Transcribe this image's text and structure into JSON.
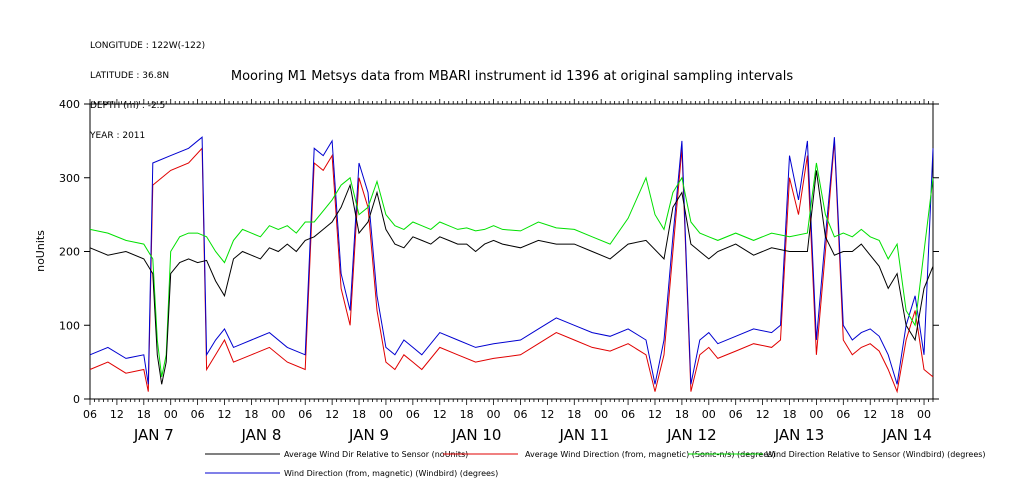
{
  "header": {
    "meta_lines": [
      "LONGITUDE : 122W(-122)",
      "LATITUDE : 36.8N",
      "DEPTH (m) : -2.5",
      "YEAR : 2011"
    ],
    "title": "Mooring M1 Metsys data from MBARI instrument id 1396 at original sampling intervals"
  },
  "colors": {
    "series1": "#000000",
    "series2": "#e00000",
    "series3": "#00e000",
    "series4": "#0000d0",
    "axis": "#000000",
    "background": "#ffffff"
  },
  "chart_data": {
    "type": "line",
    "title": "Mooring M1 Metsys data from MBARI instrument id 1396 at original sampling intervals",
    "ylabel": "noUnits",
    "xlabel": "",
    "ylim": [
      0,
      400
    ],
    "y_ticks": [
      0,
      100,
      200,
      300,
      400
    ],
    "xlim_hours": [
      0,
      188
    ],
    "x_tick_labels": [
      "06",
      "12",
      "18",
      "00",
      "06",
      "12",
      "18",
      "00",
      "06",
      "12",
      "18",
      "00",
      "06",
      "12",
      "18",
      "00",
      "06",
      "12",
      "18",
      "00",
      "06",
      "12",
      "18",
      "00",
      "06",
      "12",
      "18",
      "00",
      "06",
      "12",
      "18",
      "00"
    ],
    "day_labels": [
      "JAN  7",
      "JAN  8",
      "JAN  9",
      "JAN 10",
      "JAN 11",
      "JAN 12",
      "JAN 13",
      "JAN 14"
    ],
    "grid": false,
    "legend_position": "bottom",
    "series": [
      {
        "name": "Average Wind Dir Relative to Sensor (noUnits)",
        "x": [
          0,
          4,
          8,
          12,
          14,
          15,
          16,
          17,
          18,
          20,
          22,
          24,
          26,
          28,
          30,
          32,
          34,
          36,
          38,
          40,
          42,
          44,
          46,
          48,
          50,
          52,
          54,
          56,
          58,
          60,
          62,
          64,
          66,
          68,
          70,
          72,
          74,
          76,
          78,
          80,
          82,
          84,
          86,
          88,
          90,
          92,
          96,
          100,
          104,
          108,
          112,
          116,
          120,
          124,
          128,
          130,
          132,
          134,
          136,
          138,
          140,
          144,
          148,
          152,
          156,
          160,
          162,
          164,
          166,
          168,
          170,
          172,
          174,
          176,
          178,
          180,
          182,
          184,
          186,
          188
        ],
        "y": [
          205,
          195,
          200,
          190,
          170,
          60,
          20,
          50,
          170,
          185,
          190,
          185,
          188,
          160,
          140,
          190,
          200,
          195,
          190,
          205,
          200,
          210,
          200,
          215,
          220,
          230,
          240,
          260,
          290,
          225,
          240,
          280,
          230,
          210,
          205,
          220,
          215,
          210,
          220,
          215,
          210,
          210,
          200,
          210,
          215,
          210,
          205,
          215,
          210,
          210,
          200,
          190,
          210,
          215,
          190,
          260,
          280,
          210,
          200,
          190,
          200,
          210,
          195,
          205,
          200,
          200,
          310,
          220,
          195,
          200,
          200,
          210,
          195,
          180,
          150,
          170,
          100,
          80,
          150,
          180
        ]
      },
      {
        "name": "Average Wind Direction (from, magnetic) (Sonic-n/s) (degrees)",
        "x": [
          0,
          4,
          8,
          12,
          13,
          14,
          18,
          22,
          25,
          26,
          28,
          30,
          32,
          34,
          36,
          40,
          44,
          48,
          50,
          52,
          54,
          56,
          58,
          60,
          62,
          64,
          66,
          68,
          70,
          72,
          74,
          78,
          82,
          86,
          90,
          96,
          100,
          104,
          108,
          112,
          116,
          120,
          124,
          126,
          128,
          130,
          132,
          134,
          136,
          138,
          140,
          144,
          148,
          152,
          154,
          156,
          158,
          160,
          162,
          164,
          166,
          168,
          170,
          172,
          174,
          176,
          178,
          180,
          182,
          184,
          186,
          188
        ],
        "y": [
          40,
          50,
          35,
          40,
          10,
          290,
          310,
          320,
          340,
          40,
          60,
          80,
          50,
          55,
          60,
          70,
          50,
          40,
          320,
          310,
          330,
          150,
          100,
          300,
          260,
          120,
          50,
          40,
          60,
          50,
          40,
          70,
          60,
          50,
          55,
          60,
          75,
          90,
          80,
          70,
          65,
          75,
          60,
          10,
          60,
          200,
          340,
          10,
          60,
          70,
          55,
          65,
          75,
          70,
          80,
          300,
          250,
          330,
          60,
          200,
          350,
          80,
          60,
          70,
          75,
          65,
          40,
          10,
          80,
          120,
          40,
          30
        ]
      },
      {
        "name": "Wind Direction Relative to Sensor (Windbird) (degrees)",
        "x": [
          0,
          4,
          8,
          12,
          14,
          15,
          16,
          17,
          18,
          20,
          22,
          24,
          26,
          28,
          30,
          32,
          34,
          36,
          38,
          40,
          42,
          44,
          46,
          48,
          50,
          52,
          54,
          56,
          58,
          60,
          62,
          64,
          66,
          68,
          70,
          72,
          74,
          76,
          78,
          80,
          82,
          84,
          86,
          88,
          90,
          92,
          96,
          100,
          104,
          108,
          112,
          116,
          120,
          124,
          126,
          128,
          130,
          132,
          134,
          136,
          138,
          140,
          144,
          148,
          152,
          156,
          160,
          162,
          164,
          166,
          168,
          170,
          172,
          174,
          176,
          178,
          180,
          182,
          184,
          186,
          188
        ],
        "y": [
          230,
          225,
          215,
          210,
          190,
          80,
          30,
          60,
          200,
          220,
          225,
          225,
          220,
          200,
          185,
          215,
          230,
          225,
          220,
          235,
          230,
          235,
          225,
          240,
          240,
          255,
          270,
          290,
          300,
          250,
          260,
          295,
          250,
          235,
          230,
          240,
          235,
          230,
          240,
          235,
          230,
          232,
          228,
          230,
          235,
          230,
          228,
          240,
          232,
          230,
          220,
          210,
          245,
          300,
          250,
          230,
          280,
          300,
          240,
          225,
          220,
          215,
          225,
          215,
          225,
          220,
          225,
          320,
          250,
          220,
          225,
          220,
          230,
          220,
          215,
          190,
          210,
          120,
          100,
          200,
          300
        ]
      },
      {
        "name": "Wind Direction (from, magnetic) (Windbird) (degrees)",
        "x": [
          0,
          4,
          8,
          12,
          13,
          14,
          18,
          22,
          25,
          26,
          28,
          30,
          32,
          34,
          36,
          40,
          44,
          48,
          50,
          52,
          54,
          56,
          58,
          60,
          62,
          64,
          66,
          68,
          70,
          72,
          74,
          78,
          82,
          86,
          90,
          96,
          100,
          104,
          108,
          112,
          116,
          120,
          124,
          126,
          128,
          130,
          132,
          134,
          136,
          138,
          140,
          144,
          148,
          152,
          154,
          156,
          158,
          160,
          162,
          164,
          166,
          168,
          170,
          172,
          174,
          176,
          178,
          180,
          182,
          184,
          186,
          188
        ],
        "y": [
          60,
          70,
          55,
          60,
          20,
          320,
          330,
          340,
          355,
          60,
          80,
          95,
          70,
          75,
          80,
          90,
          70,
          60,
          340,
          330,
          350,
          170,
          120,
          320,
          280,
          140,
          70,
          60,
          80,
          70,
          60,
          90,
          80,
          70,
          75,
          80,
          95,
          110,
          100,
          90,
          85,
          95,
          80,
          20,
          80,
          220,
          350,
          20,
          80,
          90,
          75,
          85,
          95,
          90,
          100,
          330,
          270,
          350,
          80,
          220,
          355,
          100,
          80,
          90,
          95,
          85,
          60,
          20,
          100,
          140,
          60,
          340
        ]
      }
    ]
  }
}
